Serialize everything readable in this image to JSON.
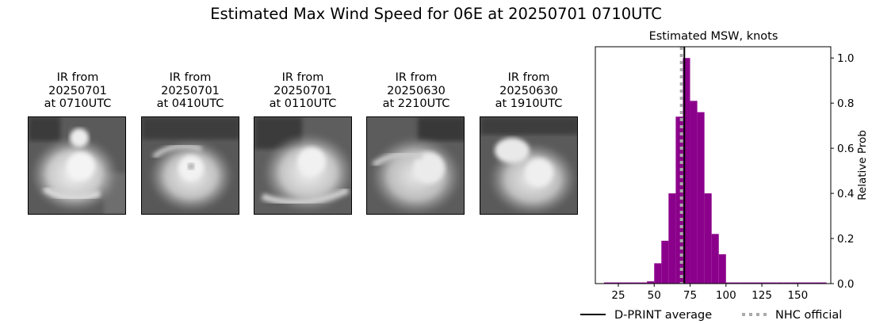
{
  "suptitle": "Estimated Max Wind Speed for 06E at 20250701 0710UTC",
  "ir_panels": [
    {
      "line1": "IR from",
      "line2": "20250701",
      "line3": "at 0710UTC"
    },
    {
      "line1": "IR from",
      "line2": "20250701",
      "line3": "at 0410UTC"
    },
    {
      "line1": "IR from",
      "line2": "20250701",
      "line3": "at 0110UTC"
    },
    {
      "line1": "IR from",
      "line2": "20250630",
      "line3": "at 2210UTC"
    },
    {
      "line1": "IR from",
      "line2": "20250630",
      "line3": "at 1910UTC"
    }
  ],
  "chart_data": {
    "type": "bar",
    "title": "Estimated MSW, knots",
    "xlabel": "",
    "ylabel": "Relative Prob",
    "xlim": [
      9,
      173
    ],
    "ylim": [
      0,
      1.05
    ],
    "xticks": [
      25,
      50,
      75,
      100,
      125,
      150
    ],
    "yticks": [
      0.0,
      0.2,
      0.4,
      0.6,
      0.8,
      1.0
    ],
    "ytick_labels": [
      "0.0",
      "0.2",
      "0.4",
      "0.6",
      "0.8",
      "1.0"
    ],
    "y_axis_side": "right",
    "bar_color": "#8b008b",
    "bin_width": 5,
    "bins": [
      {
        "x0": 15,
        "value": 0.005
      },
      {
        "x0": 20,
        "value": 0.005
      },
      {
        "x0": 25,
        "value": 0.005
      },
      {
        "x0": 30,
        "value": 0.005
      },
      {
        "x0": 35,
        "value": 0.005
      },
      {
        "x0": 40,
        "value": 0.005
      },
      {
        "x0": 45,
        "value": 0.01
      },
      {
        "x0": 50,
        "value": 0.09
      },
      {
        "x0": 55,
        "value": 0.19
      },
      {
        "x0": 60,
        "value": 0.4
      },
      {
        "x0": 65,
        "value": 0.74
      },
      {
        "x0": 70,
        "value": 1.0
      },
      {
        "x0": 75,
        "value": 0.81
      },
      {
        "x0": 80,
        "value": 0.76
      },
      {
        "x0": 85,
        "value": 0.4
      },
      {
        "x0": 90,
        "value": 0.22
      },
      {
        "x0": 95,
        "value": 0.13
      },
      {
        "x0": 100,
        "value": 0.005
      },
      {
        "x0": 105,
        "value": 0.005
      },
      {
        "x0": 110,
        "value": 0.005
      },
      {
        "x0": 115,
        "value": 0.005
      },
      {
        "x0": 120,
        "value": 0.005
      },
      {
        "x0": 125,
        "value": 0.005
      },
      {
        "x0": 130,
        "value": 0.005
      },
      {
        "x0": 135,
        "value": 0.005
      },
      {
        "x0": 140,
        "value": 0.005
      },
      {
        "x0": 145,
        "value": 0.005
      },
      {
        "x0": 150,
        "value": 0.005
      },
      {
        "x0": 155,
        "value": 0.005
      },
      {
        "x0": 160,
        "value": 0.005
      },
      {
        "x0": 165,
        "value": 0.005
      }
    ],
    "reference_lines": [
      {
        "name": "D-PRINT average",
        "x": 71,
        "style": "solid",
        "color": "#000000"
      },
      {
        "name": "NHC official",
        "x": 69,
        "style": "dotted",
        "color": "#aaaaaa"
      }
    ],
    "legend": {
      "placement": "bottom",
      "entries": [
        "D-PRINT average",
        "NHC official"
      ]
    }
  }
}
